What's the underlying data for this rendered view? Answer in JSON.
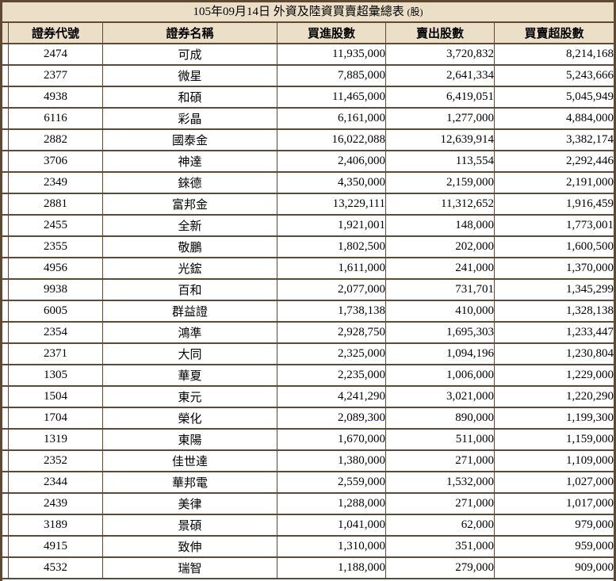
{
  "title": {
    "text": "105年09月14日 外資及陸資買賣超彙總表",
    "suffix": "(股)"
  },
  "table": {
    "columns": [
      "證券代號",
      "證券名稱",
      "買進股數",
      "賣出股數",
      "買賣超股數"
    ],
    "rows": [
      [
        "2474",
        "可成",
        "11,935,000",
        "3,720,832",
        "8,214,168"
      ],
      [
        "2377",
        "微星",
        "7,885,000",
        "2,641,334",
        "5,243,666"
      ],
      [
        "4938",
        "和碩",
        "11,465,000",
        "6,419,051",
        "5,045,949"
      ],
      [
        "6116",
        "彩晶",
        "6,161,000",
        "1,277,000",
        "4,884,000"
      ],
      [
        "2882",
        "國泰金",
        "16,022,088",
        "12,639,914",
        "3,382,174"
      ],
      [
        "3706",
        "神達",
        "2,406,000",
        "113,554",
        "2,292,446"
      ],
      [
        "2349",
        "錸德",
        "4,350,000",
        "2,159,000",
        "2,191,000"
      ],
      [
        "2881",
        "富邦金",
        "13,229,111",
        "11,312,652",
        "1,916,459"
      ],
      [
        "2455",
        "全新",
        "1,921,001",
        "148,000",
        "1,773,001"
      ],
      [
        "2355",
        "敬鵬",
        "1,802,500",
        "202,000",
        "1,600,500"
      ],
      [
        "4956",
        "光鋐",
        "1,611,000",
        "241,000",
        "1,370,000"
      ],
      [
        "9938",
        "百和",
        "2,077,000",
        "731,701",
        "1,345,299"
      ],
      [
        "6005",
        "群益證",
        "1,738,138",
        "410,000",
        "1,328,138"
      ],
      [
        "2354",
        "鴻準",
        "2,928,750",
        "1,695,303",
        "1,233,447"
      ],
      [
        "2371",
        "大同",
        "2,325,000",
        "1,094,196",
        "1,230,804"
      ],
      [
        "1305",
        "華夏",
        "2,235,000",
        "1,006,000",
        "1,229,000"
      ],
      [
        "1504",
        "東元",
        "4,241,290",
        "3,021,000",
        "1,220,290"
      ],
      [
        "1704",
        "榮化",
        "2,089,300",
        "890,000",
        "1,199,300"
      ],
      [
        "1319",
        "東陽",
        "1,670,000",
        "511,000",
        "1,159,000"
      ],
      [
        "2352",
        "佳世達",
        "1,380,000",
        "271,000",
        "1,109,000"
      ],
      [
        "2344",
        "華邦電",
        "2,559,000",
        "1,532,000",
        "1,027,000"
      ],
      [
        "2439",
        "美律",
        "1,288,000",
        "271,000",
        "1,017,000"
      ],
      [
        "3189",
        "景碩",
        "1,041,000",
        "62,000",
        "979,000"
      ],
      [
        "4915",
        "致伸",
        "1,310,000",
        "351,000",
        "959,000"
      ],
      [
        "4532",
        "瑞智",
        "1,188,000",
        "279,000",
        "909,000"
      ]
    ]
  },
  "colors": {
    "border": "#5E4933",
    "panel": "#ECDFC8",
    "row_background": "#FFFFFF",
    "text": "#000000"
  }
}
